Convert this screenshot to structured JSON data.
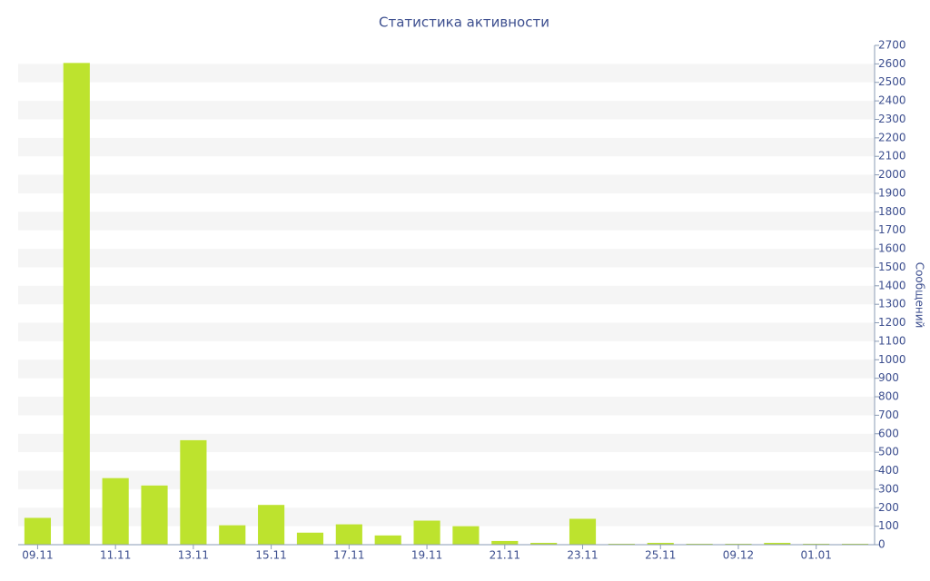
{
  "chart_data": {
    "type": "bar",
    "title": "Статистика активности",
    "y_label": "Сообщений",
    "categories": [
      "09.11",
      null,
      "11.11",
      null,
      "13.11",
      null,
      "15.11",
      null,
      "17.11",
      null,
      "19.11",
      null,
      "21.11",
      null,
      "23.11",
      null,
      "25.11",
      null,
      "09.12",
      null,
      "01.01",
      null
    ],
    "values": [
      145,
      2605,
      360,
      320,
      565,
      105,
      215,
      65,
      110,
      50,
      130,
      100,
      20,
      10,
      140,
      5,
      10,
      5,
      5,
      10,
      5,
      5
    ],
    "color": "#bde32e",
    "ylim": [
      0,
      2700
    ],
    "yticks": [
      0,
      100,
      200,
      300,
      400,
      500,
      600,
      700,
      800,
      900,
      1000,
      1100,
      1200,
      1300,
      1400,
      1500,
      1600,
      1700,
      1800,
      1900,
      2000,
      2100,
      2200,
      2300,
      2400,
      2500,
      2600,
      2700
    ],
    "grid": "alternating-bands"
  }
}
